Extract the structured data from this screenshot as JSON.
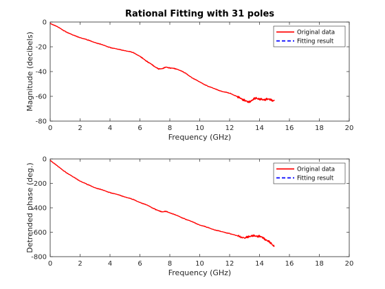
{
  "chart_data": [
    {
      "type": "line",
      "title": "Rational Fitting with 31 poles",
      "xlabel": "Frequency (GHz)",
      "ylabel": "Magnitude (decibels)",
      "xlim": [
        0,
        20
      ],
      "ylim": [
        -80,
        0
      ],
      "xticks": [
        0,
        2,
        4,
        6,
        8,
        10,
        12,
        14,
        16,
        18,
        20
      ],
      "yticks": [
        -80,
        -60,
        -40,
        -20,
        0
      ],
      "grid": false,
      "legend_position": "top-right",
      "series": [
        {
          "name": "Original data",
          "color": "#ff0000",
          "line_style": "solid",
          "x": [
            0,
            0.5,
            1,
            1.5,
            2,
            2.5,
            3,
            3.5,
            4,
            4.5,
            5,
            5.5,
            6,
            6.25,
            6.5,
            6.75,
            7,
            7.25,
            7.5,
            7.75,
            8,
            8.25,
            8.5,
            9,
            9.5,
            10,
            10.5,
            11,
            11.5,
            12,
            12.5,
            12.75,
            13,
            13.25,
            13.5,
            13.75,
            14,
            14.25,
            14.5,
            14.75,
            15
          ],
          "y": [
            -1,
            -4,
            -7.5,
            -10.5,
            -12.5,
            -14.5,
            -16.5,
            -18.5,
            -20.5,
            -22,
            -23,
            -24.5,
            -27.5,
            -30,
            -32,
            -34,
            -36,
            -38,
            -37.5,
            -36.5,
            -37,
            -37.5,
            -38,
            -41,
            -45,
            -48.5,
            -51.5,
            -54,
            -56,
            -57.5,
            -60,
            -62,
            -63,
            -65,
            -63,
            -61.5,
            -62,
            -63,
            -62,
            -63,
            -63.5
          ]
        },
        {
          "name": "Fitting result",
          "color": "#0000ff",
          "line_style": "dashed",
          "x": [],
          "y": []
        }
      ]
    },
    {
      "type": "line",
      "title": "",
      "xlabel": "Frequency (GHz)",
      "ylabel": "Detrended phase (deg.)",
      "xlim": [
        0,
        20
      ],
      "ylim": [
        -800,
        0
      ],
      "xticks": [
        0,
        2,
        4,
        6,
        8,
        10,
        12,
        14,
        16,
        18,
        20
      ],
      "yticks": [
        -800,
        -600,
        -400,
        -200,
        0
      ],
      "grid": false,
      "legend_position": "top-right",
      "series": [
        {
          "name": "Original data",
          "color": "#ff0000",
          "line_style": "solid",
          "x": [
            0,
            0.5,
            1,
            1.5,
            2,
            2.5,
            3,
            3.5,
            4,
            4.5,
            5,
            5.5,
            6,
            6.5,
            7,
            7.25,
            7.5,
            7.75,
            8,
            8.5,
            9,
            9.5,
            10,
            10.5,
            11,
            11.5,
            12,
            12.5,
            13,
            13.25,
            13.5,
            13.75,
            14,
            14.25,
            14.5,
            14.75,
            15
          ],
          "y": [
            -10,
            -60,
            -105,
            -145,
            -180,
            -210,
            -235,
            -255,
            -275,
            -292,
            -310,
            -330,
            -355,
            -380,
            -410,
            -425,
            -432,
            -430,
            -440,
            -465,
            -490,
            -515,
            -540,
            -560,
            -580,
            -597,
            -610,
            -630,
            -645,
            -640,
            -625,
            -635,
            -630,
            -650,
            -665,
            -690,
            -715
          ]
        },
        {
          "name": "Fitting result",
          "color": "#0000ff",
          "line_style": "dashed",
          "x": [],
          "y": []
        }
      ]
    }
  ]
}
